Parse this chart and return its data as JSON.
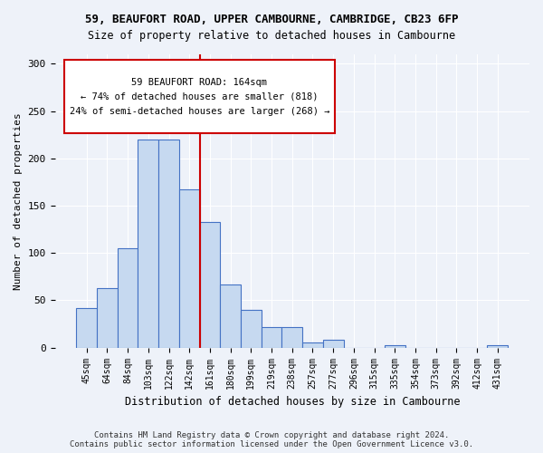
{
  "title_line1": "59, BEAUFORT ROAD, UPPER CAMBOURNE, CAMBRIDGE, CB23 6FP",
  "title_line2": "Size of property relative to detached houses in Cambourne",
  "xlabel": "Distribution of detached houses by size in Cambourne",
  "ylabel": "Number of detached properties",
  "categories": [
    "45sqm",
    "64sqm",
    "84sqm",
    "103sqm",
    "122sqm",
    "142sqm",
    "161sqm",
    "180sqm",
    "199sqm",
    "219sqm",
    "238sqm",
    "257sqm",
    "277sqm",
    "296sqm",
    "315sqm",
    "335sqm",
    "354sqm",
    "373sqm",
    "392sqm",
    "412sqm",
    "431sqm"
  ],
  "values": [
    42,
    63,
    105,
    220,
    220,
    167,
    133,
    67,
    40,
    22,
    22,
    5,
    8,
    0,
    0,
    3,
    0,
    0,
    0,
    0,
    3
  ],
  "bar_color": "#c6d9f0",
  "bar_edge_color": "#4472c4",
  "vline_index": 6,
  "marker_label": "59 BEAUFORT ROAD: 164sqm",
  "annotation_line2": "← 74% of detached houses are smaller (818)",
  "annotation_line3": "24% of semi-detached houses are larger (268) →",
  "vline_color": "#cc0000",
  "annotation_box_color": "#cc0000",
  "background_color": "#eef2f9",
  "grid_color": "#ffffff",
  "footer_line1": "Contains HM Land Registry data © Crown copyright and database right 2024.",
  "footer_line2": "Contains public sector information licensed under the Open Government Licence v3.0.",
  "ylim": [
    0,
    310
  ],
  "yticks": [
    0,
    50,
    100,
    150,
    200,
    250,
    300
  ]
}
